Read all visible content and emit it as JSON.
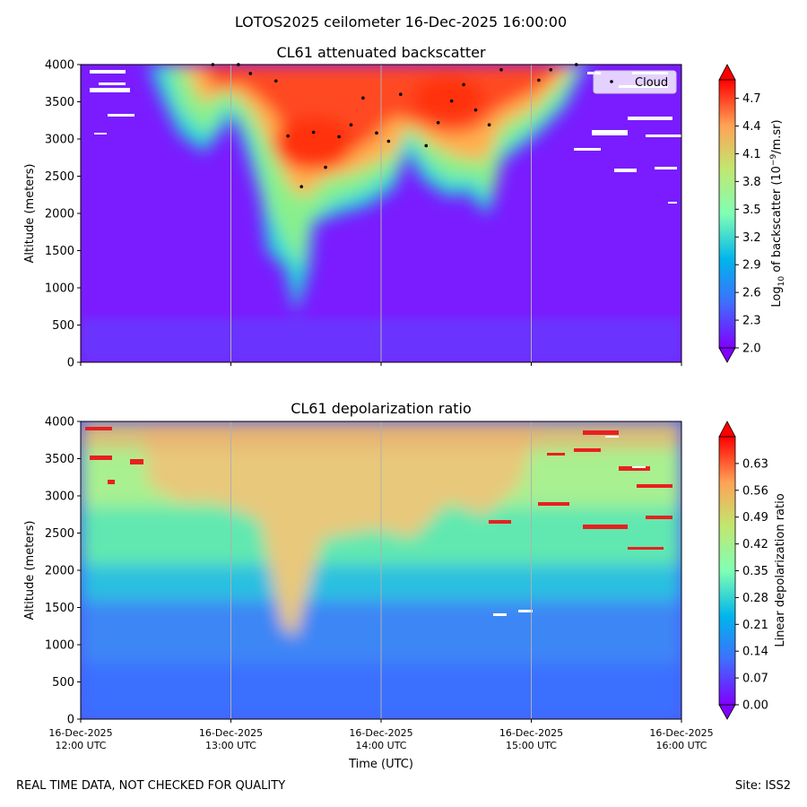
{
  "suptitle": "LOTOS2025 ceilometer 16-Dec-2025 16:00:00",
  "footer_left": "REAL TIME DATA, NOT CHECKED FOR QUALITY",
  "footer_right": "Site: ISS2",
  "chart_data": [
    {
      "type": "heatmap",
      "title": "CL61 attenuated backscatter",
      "ylabel": "Altitude (meters)",
      "xlabel": "",
      "xlim": [
        0,
        4
      ],
      "ylim": [
        0,
        4000
      ],
      "yticks": [
        0,
        500,
        1000,
        1500,
        2000,
        2500,
        3000,
        3500,
        4000
      ],
      "xticks": [
        0,
        1,
        2,
        3,
        4
      ],
      "grid_x": true,
      "colorbar": {
        "label": "Log10 of backscatter (10^-9/m.sr)",
        "label_main": "Log",
        "label_sub": "10",
        "label_mid": " of backscatter (10",
        "label_sup": "−9",
        "label_end": "/m.sr)",
        "range": [
          2.0,
          4.9
        ],
        "ticks": [
          "2.0",
          "2.3",
          "2.6",
          "2.9",
          "3.2",
          "3.5",
          "3.8",
          "4.1",
          "4.4",
          "4.7"
        ],
        "colormap": "rainbow"
      },
      "legend": {
        "label": "Cloud",
        "placement": "top-right"
      },
      "cloud_points": [
        [
          0.88,
          4000
        ],
        [
          1.05,
          4000
        ],
        [
          1.13,
          3880
        ],
        [
          1.3,
          3780
        ],
        [
          1.38,
          3040
        ],
        [
          1.47,
          2360
        ],
        [
          1.55,
          3090
        ],
        [
          1.63,
          2620
        ],
        [
          1.72,
          3030
        ],
        [
          1.8,
          3190
        ],
        [
          1.88,
          3550
        ],
        [
          1.97,
          3080
        ],
        [
          2.05,
          2970
        ],
        [
          2.13,
          3600
        ],
        [
          2.3,
          2910
        ],
        [
          2.38,
          3220
        ],
        [
          2.47,
          3510
        ],
        [
          2.55,
          3730
        ],
        [
          2.63,
          3390
        ],
        [
          2.72,
          3190
        ],
        [
          2.8,
          3930
        ],
        [
          3.05,
          3790
        ],
        [
          3.13,
          3930
        ],
        [
          3.3,
          4000
        ]
      ]
    },
    {
      "type": "heatmap",
      "title": "CL61 depolarization ratio",
      "ylabel": "Altitude (meters)",
      "xlabel": "Time (UTC)",
      "xlim": [
        0,
        4
      ],
      "ylim": [
        0,
        4000
      ],
      "yticks": [
        0,
        500,
        1000,
        1500,
        2000,
        2500,
        3000,
        3500,
        4000
      ],
      "xticks": [
        0,
        1,
        2,
        3,
        4
      ],
      "xtick_labels": [
        [
          "16-Dec-2025",
          "12:00 UTC"
        ],
        [
          "16-Dec-2025",
          "13:00 UTC"
        ],
        [
          "16-Dec-2025",
          "14:00 UTC"
        ],
        [
          "16-Dec-2025",
          "15:00 UTC"
        ],
        [
          "16-Dec-2025",
          "16:00 UTC"
        ]
      ],
      "grid_x": true,
      "colorbar": {
        "label": "Linear depolarization ratio",
        "range": [
          0.0,
          0.7
        ],
        "ticks": [
          "0.00",
          "0.07",
          "0.14",
          "0.21",
          "0.28",
          "0.35",
          "0.42",
          "0.49",
          "0.56",
          "0.63"
        ],
        "colormap": "rainbow"
      }
    }
  ]
}
